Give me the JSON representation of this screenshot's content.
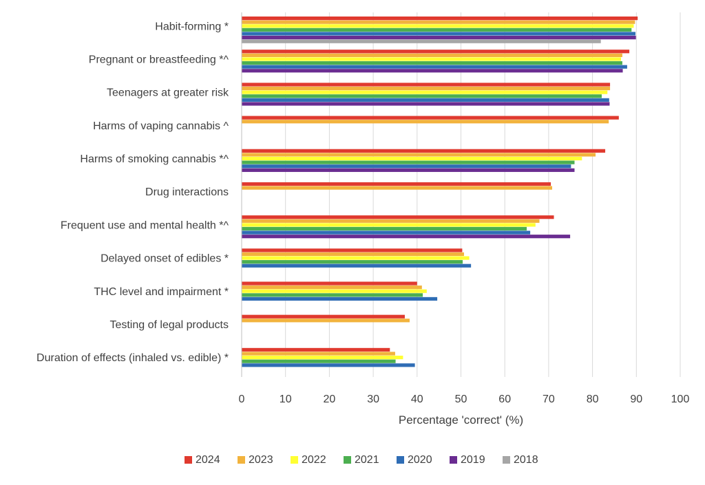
{
  "chart_data": {
    "type": "bar",
    "orientation": "horizontal",
    "xlabel": "Percentage 'correct' (%)",
    "xlim": [
      0,
      100
    ],
    "xticks": [
      "0",
      "10",
      "20",
      "30",
      "40",
      "50",
      "60",
      "70",
      "80",
      "90",
      "100"
    ],
    "grid": "vertical",
    "legend_position": "bottom",
    "categories": [
      "Habit-forming *",
      "Pregnant or breastfeeding *^",
      "Teenagers at greater risk",
      "Harms of vaping cannabis ^",
      "Harms of smoking cannabis *^",
      "Drug interactions",
      "Frequent use and mental health *^",
      "Delayed onset of edibles *",
      "THC level and impairment *",
      "Testing of legal products",
      "Duration of effects (inhaled vs. edible) *"
    ],
    "series": [
      {
        "name": "2024",
        "color": "#e03a2f",
        "values": [
          90.3,
          88.4,
          84.0,
          86.0,
          82.9,
          70.5,
          71.2,
          50.3,
          40.0,
          37.2,
          33.8
        ]
      },
      {
        "name": "2023",
        "color": "#f2b33d",
        "values": [
          89.7,
          86.8,
          84.0,
          83.7,
          80.7,
          70.8,
          67.9,
          50.7,
          41.1,
          38.3,
          35.0
        ]
      },
      {
        "name": "2022",
        "color": "#ffff33",
        "values": [
          89.4,
          86.5,
          83.4,
          null,
          77.6,
          null,
          67.0,
          51.9,
          42.2,
          null,
          36.8
        ]
      },
      {
        "name": "2021",
        "color": "#4caf50",
        "values": [
          88.9,
          86.8,
          82.1,
          null,
          75.9,
          null,
          65.0,
          50.4,
          41.3,
          null,
          35.1
        ]
      },
      {
        "name": "2020",
        "color": "#2f6db5",
        "values": [
          89.8,
          87.9,
          83.8,
          null,
          75.1,
          null,
          65.8,
          52.3,
          44.6,
          null,
          39.5
        ]
      },
      {
        "name": "2019",
        "color": "#6a2c91",
        "values": [
          89.9,
          86.9,
          83.9,
          null,
          75.9,
          null,
          74.9,
          null,
          null,
          null,
          null
        ]
      },
      {
        "name": "2018",
        "color": "#a6a6a6",
        "values": [
          81.9,
          null,
          null,
          null,
          null,
          null,
          null,
          null,
          null,
          null,
          null
        ]
      }
    ]
  }
}
